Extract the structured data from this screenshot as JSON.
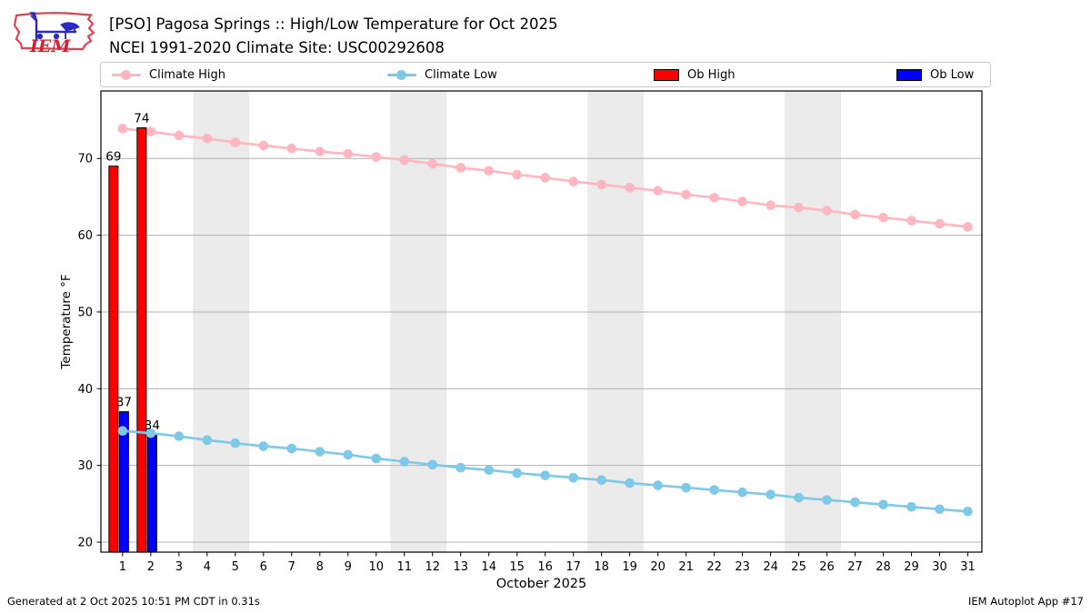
{
  "header": {
    "title_line1": "[PSO] Pagosa Springs :: High/Low Temperature for Oct 2025",
    "title_line2": "NCEI 1991-2020 Climate Site: USC00292608",
    "logo_text": "IEM"
  },
  "legend": {
    "items": [
      {
        "label": "Climate High",
        "type": "line",
        "color": "#FFB6C1"
      },
      {
        "label": "Climate Low",
        "type": "line",
        "color": "#7EC9E8"
      },
      {
        "label": "Ob High",
        "type": "patch",
        "color": "#FF0000"
      },
      {
        "label": "Ob Low",
        "type": "patch",
        "color": "#0000FF"
      }
    ]
  },
  "footer": {
    "left": "Generated at 2 Oct 2025 10:51 PM CDT in 0.31s",
    "right": "IEM Autoplot App #17"
  },
  "chart_data": {
    "type": "line+bar",
    "title": "[PSO] Pagosa Springs :: High/Low Temperature for Oct 2025",
    "subtitle": "NCEI 1991-2020 Climate Site: USC00292608",
    "xlabel": "October 2025",
    "ylabel": "Temperature °F",
    "x": [
      1,
      2,
      3,
      4,
      5,
      6,
      7,
      8,
      9,
      10,
      11,
      12,
      13,
      14,
      15,
      16,
      17,
      18,
      19,
      20,
      21,
      22,
      23,
      24,
      25,
      26,
      27,
      28,
      29,
      30,
      31
    ],
    "xticks": [
      1,
      2,
      3,
      4,
      5,
      6,
      7,
      8,
      9,
      10,
      11,
      12,
      13,
      14,
      15,
      16,
      17,
      18,
      19,
      20,
      21,
      22,
      23,
      24,
      25,
      26,
      27,
      28,
      29,
      30,
      31
    ],
    "yticks": [
      20,
      30,
      40,
      50,
      60,
      70
    ],
    "xlim": [
      0.23,
      31.5
    ],
    "ylim": [
      18.7,
      78.8
    ],
    "grid": "horizontal",
    "grid_color": "#b0b0b0",
    "band_color": "#ebebeb",
    "weekend_bands": [
      [
        3.5,
        5.5
      ],
      [
        10.5,
        12.5
      ],
      [
        17.5,
        19.5
      ],
      [
        24.5,
        26.5
      ]
    ],
    "series": [
      {
        "name": "Climate High",
        "type": "line",
        "color": "#FFB6C1",
        "values": [
          73.9,
          73.5,
          73.0,
          72.6,
          72.1,
          71.7,
          71.3,
          70.9,
          70.6,
          70.2,
          69.8,
          69.3,
          68.8,
          68.4,
          67.9,
          67.5,
          67.0,
          66.6,
          66.2,
          65.8,
          65.3,
          64.9,
          64.4,
          63.9,
          63.6,
          63.2,
          62.7,
          62.3,
          61.9,
          61.5,
          61.1
        ]
      },
      {
        "name": "Climate Low",
        "type": "line",
        "color": "#7EC9E8",
        "values": [
          34.5,
          34.2,
          33.8,
          33.3,
          32.9,
          32.5,
          32.2,
          31.8,
          31.4,
          30.9,
          30.5,
          30.1,
          29.7,
          29.4,
          29.0,
          28.7,
          28.4,
          28.1,
          27.7,
          27.4,
          27.1,
          26.8,
          26.5,
          26.2,
          25.8,
          25.5,
          25.2,
          24.9,
          24.6,
          24.3,
          24.0
        ]
      },
      {
        "name": "Ob High",
        "type": "bar",
        "color": "#FF0000",
        "x": [
          1,
          2
        ],
        "values": [
          69,
          74
        ],
        "labels": [
          "69",
          "74"
        ]
      },
      {
        "name": "Ob Low",
        "type": "bar",
        "color": "#0000FF",
        "x": [
          1,
          2
        ],
        "values": [
          37,
          34
        ],
        "labels": [
          "37",
          "34"
        ]
      }
    ],
    "legend_position": "top"
  }
}
